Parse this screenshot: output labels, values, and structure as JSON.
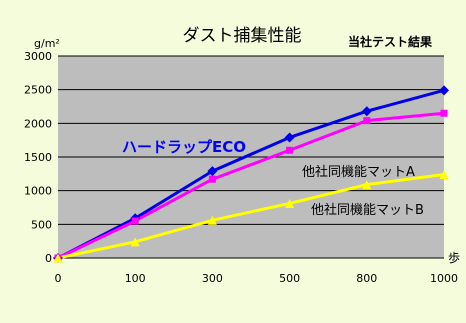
{
  "chart_data": {
    "type": "line",
    "title": "ダスト捕集性能",
    "subtitle": "当社テスト結果",
    "ylabel": "g/m²",
    "xlabel": "歩",
    "categories": [
      "0",
      "100",
      "300",
      "500",
      "800",
      "1000"
    ],
    "ylim": [
      0,
      3000
    ],
    "yticks": [
      "0",
      "500",
      "1000",
      "1500",
      "2000",
      "2500",
      "3000"
    ],
    "grid": true,
    "series": [
      {
        "name": "ハードラップECO",
        "values": [
          0,
          590,
          1290,
          1790,
          2180,
          2490
        ],
        "color": "#0000ee",
        "marker": "diamond",
        "label_color": "#0000ff"
      },
      {
        "name": "他社同機能マットA",
        "values": [
          0,
          550,
          1170,
          1600,
          2040,
          2150
        ],
        "color": "#ff00ff",
        "marker": "square",
        "label_color": "#000000"
      },
      {
        "name": "他社同機能マットB",
        "values": [
          0,
          240,
          560,
          810,
          1090,
          1240
        ],
        "color": "#ffff00",
        "marker": "triangle",
        "label_color": "#000000"
      }
    ]
  },
  "colors": {
    "page_background": "#f4fcdc",
    "plot_background": "#bdbdbd",
    "gridline": "#000000"
  }
}
